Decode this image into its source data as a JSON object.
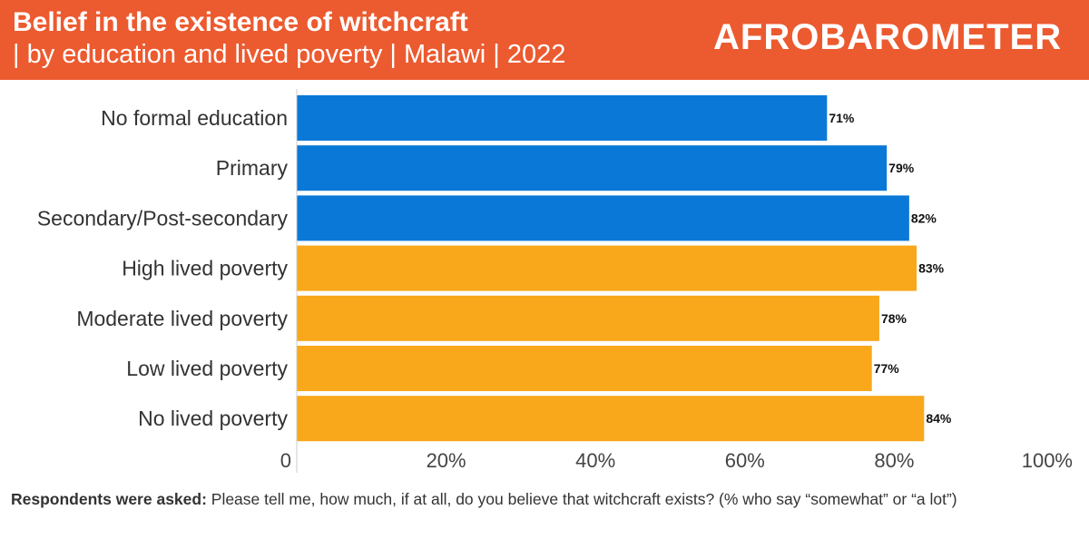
{
  "header": {
    "title": "Belief in the existence of witchcraft",
    "subtitle": "| by education and lived poverty | Malawi | 2022",
    "logo_text": "AFROBAROMETER",
    "background_color": "#ec5a2f"
  },
  "chart_data": {
    "type": "bar",
    "orientation": "horizontal",
    "categories": [
      "No formal education",
      "Primary",
      "Secondary/Post-secondary",
      "High lived poverty",
      "Moderate lived poverty",
      "Low lived poverty",
      "No lived poverty"
    ],
    "values": [
      71,
      79,
      82,
      83,
      78,
      77,
      84
    ],
    "value_labels": [
      "71%",
      "79%",
      "82%",
      "83%",
      "78%",
      "77%",
      "84%"
    ],
    "bar_colors": [
      "#0a78d7",
      "#0a78d7",
      "#0a78d7",
      "#f9a71b",
      "#f9a71b",
      "#f9a71b",
      "#f9a71b"
    ],
    "xlim": [
      0,
      100
    ],
    "xticks": [
      {
        "value": 0,
        "label": "0"
      },
      {
        "value": 20,
        "label": "20%"
      },
      {
        "value": 40,
        "label": "40%"
      },
      {
        "value": 60,
        "label": "60%"
      },
      {
        "value": 80,
        "label": "80%"
      },
      {
        "value": 100,
        "label": "100%"
      }
    ],
    "grid": false
  },
  "footnote": {
    "bold": "Respondents were asked:",
    "text": " Please tell me, how much, if at all, do you believe that witchcraft exists?  (% who say “somewhat” or “a lot”)"
  }
}
